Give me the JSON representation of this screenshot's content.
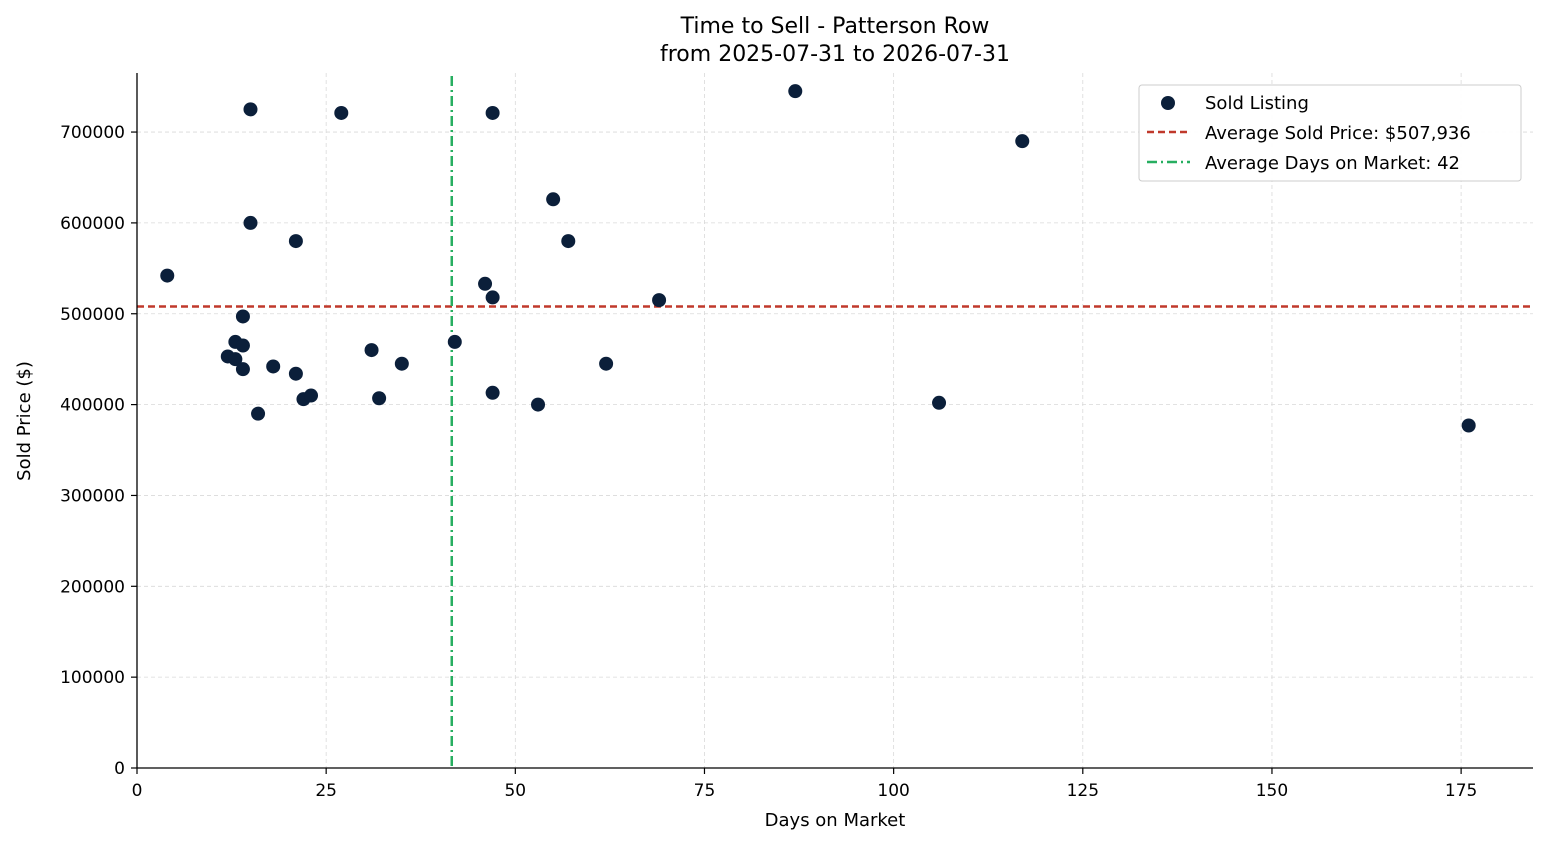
{
  "chart_data": {
    "type": "scatter",
    "title": "Time to Sell - Patterson Row",
    "subtitle": "from 2025-07-31 to 2026-07-31",
    "xlabel": "Days on Market",
    "ylabel": "Sold Price ($)",
    "xlim": [
      0,
      184.5
    ],
    "ylim": [
      0,
      765000
    ],
    "xticks": [
      0,
      25,
      50,
      75,
      100,
      125,
      150,
      175
    ],
    "yticks": [
      0,
      100000,
      200000,
      300000,
      400000,
      500000,
      600000,
      700000
    ],
    "grid": true,
    "legend_position": "top-right",
    "series": [
      {
        "name": "Sold Listing",
        "color": "#0b1f3a",
        "points": [
          {
            "x": 4,
            "y": 542000
          },
          {
            "x": 12,
            "y": 453000
          },
          {
            "x": 13,
            "y": 469000
          },
          {
            "x": 13,
            "y": 450000
          },
          {
            "x": 14,
            "y": 497000
          },
          {
            "x": 14,
            "y": 465000
          },
          {
            "x": 14,
            "y": 439000
          },
          {
            "x": 15,
            "y": 725000
          },
          {
            "x": 15,
            "y": 600000
          },
          {
            "x": 16,
            "y": 390000
          },
          {
            "x": 18,
            "y": 442000
          },
          {
            "x": 21,
            "y": 580000
          },
          {
            "x": 21,
            "y": 434000
          },
          {
            "x": 22,
            "y": 406000
          },
          {
            "x": 23,
            "y": 410000
          },
          {
            "x": 27,
            "y": 721000
          },
          {
            "x": 31,
            "y": 460000
          },
          {
            "x": 32,
            "y": 407000
          },
          {
            "x": 35,
            "y": 445000
          },
          {
            "x": 42,
            "y": 469000
          },
          {
            "x": 46,
            "y": 533000
          },
          {
            "x": 47,
            "y": 721000
          },
          {
            "x": 47,
            "y": 518000
          },
          {
            "x": 47,
            "y": 413000
          },
          {
            "x": 53,
            "y": 400000
          },
          {
            "x": 55,
            "y": 626000
          },
          {
            "x": 57,
            "y": 580000
          },
          {
            "x": 62,
            "y": 445000
          },
          {
            "x": 69,
            "y": 515000
          },
          {
            "x": 87,
            "y": 745000
          },
          {
            "x": 106,
            "y": 402000
          },
          {
            "x": 117,
            "y": 690000
          },
          {
            "x": 176,
            "y": 377000
          }
        ]
      }
    ],
    "reference_lines": [
      {
        "name": "Average Sold Price: $507,936",
        "orientation": "horizontal",
        "value": 507936,
        "color": "#c0392b",
        "style": "dashed"
      },
      {
        "name": "Average Days on Market: 42",
        "orientation": "vertical",
        "value": 41.6,
        "color": "#27ae60",
        "style": "dashdot"
      }
    ]
  }
}
